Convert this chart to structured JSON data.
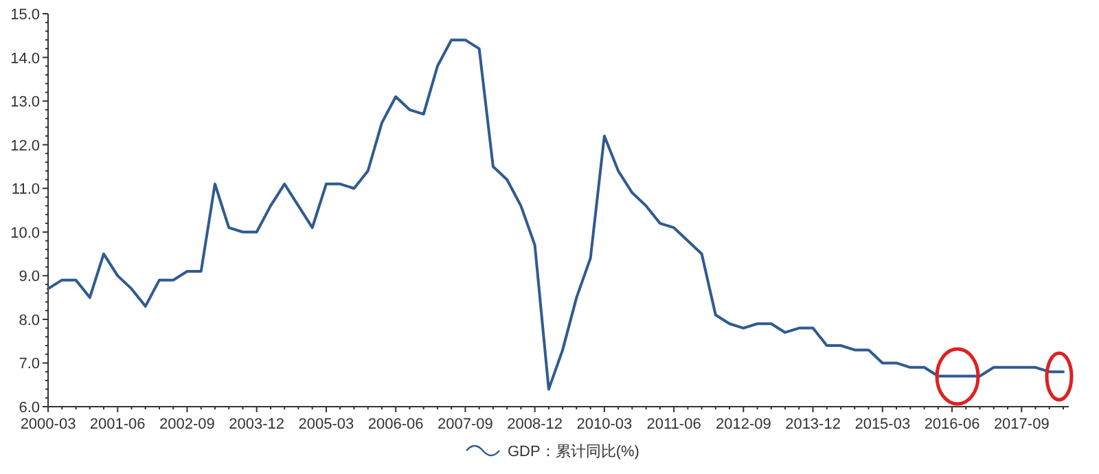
{
  "chart_data": {
    "type": "line",
    "categories": [
      "2000-03",
      null,
      null,
      null,
      null,
      "2001-06",
      null,
      null,
      null,
      null,
      "2002-09",
      null,
      null,
      null,
      null,
      "2003-12",
      null,
      null,
      null,
      null,
      "2005-03",
      null,
      null,
      null,
      null,
      "2006-06",
      null,
      null,
      null,
      null,
      "2007-09",
      null,
      null,
      null,
      null,
      "2008-12",
      null,
      null,
      null,
      null,
      "2010-03",
      null,
      null,
      null,
      null,
      "2011-06",
      null,
      null,
      null,
      null,
      "2012-09",
      null,
      null,
      null,
      null,
      "2013-12",
      null,
      null,
      null,
      null,
      "2015-03",
      null,
      null,
      null,
      null,
      "2016-06",
      null,
      null,
      null,
      null,
      "2017-09",
      null,
      null,
      null
    ],
    "series": [
      {
        "name": "GDP：累计同比(%)",
        "color": "#2f5b8f",
        "values": [
          8.7,
          8.9,
          8.9,
          8.5,
          9.5,
          9.0,
          8.7,
          8.3,
          8.9,
          8.9,
          9.1,
          9.1,
          11.1,
          10.1,
          10.0,
          10.0,
          10.6,
          11.1,
          10.6,
          10.1,
          11.1,
          11.1,
          11.0,
          11.4,
          12.5,
          13.1,
          12.8,
          12.7,
          13.8,
          14.4,
          14.4,
          14.2,
          11.5,
          11.2,
          10.6,
          9.7,
          6.4,
          7.3,
          8.5,
          9.4,
          12.2,
          11.4,
          10.9,
          10.6,
          10.2,
          10.1,
          9.8,
          9.5,
          8.1,
          7.9,
          7.8,
          7.9,
          7.9,
          7.7,
          7.8,
          7.8,
          7.4,
          7.4,
          7.3,
          7.3,
          7.0,
          7.0,
          6.9,
          6.9,
          6.7,
          6.7,
          6.7,
          6.7,
          6.9,
          6.9,
          6.9,
          6.9,
          6.8,
          6.8
        ]
      }
    ],
    "ylim": [
      6,
      15
    ],
    "yticks": [
      {
        "value": 6,
        "label": "6.0"
      },
      {
        "value": 7,
        "label": "7.0"
      },
      {
        "value": 8,
        "label": "8.0"
      },
      {
        "value": 9,
        "label": "9.0"
      },
      {
        "value": 10,
        "label": "10.0"
      },
      {
        "value": 11,
        "label": "11.0"
      },
      {
        "value": 12,
        "label": "12.0"
      },
      {
        "value": 13,
        "label": "13.0"
      },
      {
        "value": 14,
        "label": "14.0"
      },
      {
        "value": 15,
        "label": "15.0"
      }
    ],
    "grid": false,
    "legend": "bottom",
    "marker": "none",
    "line_style": "solid"
  }
}
